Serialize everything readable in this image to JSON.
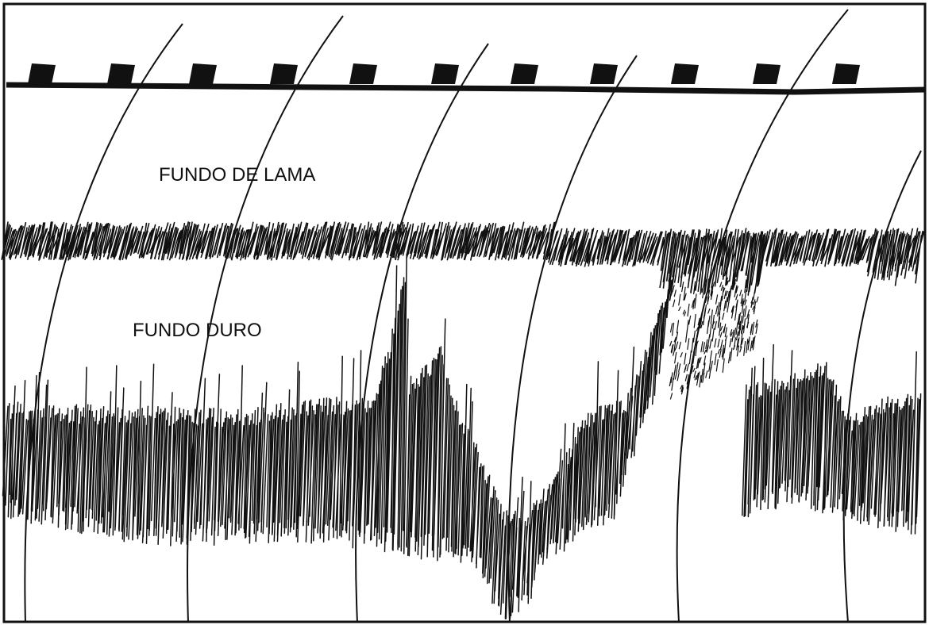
{
  "labels": {
    "mud_bottom": "FUNDO DE LAMA",
    "hard_bottom": "FUNDO DURO"
  }
}
